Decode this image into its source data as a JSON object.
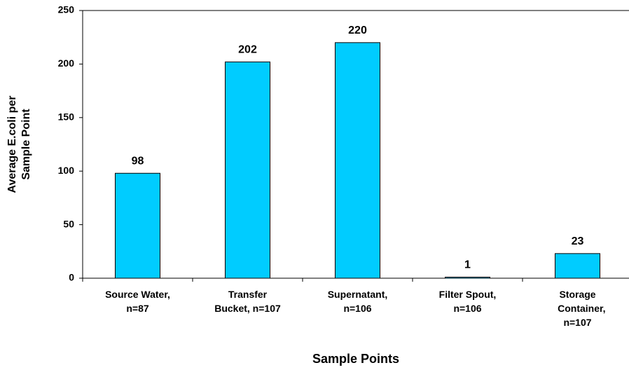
{
  "chart_data": {
    "type": "bar",
    "categories": [
      "Source Water,\nn=87",
      "Transfer\nBucket, n=107",
      "Supernatant,\nn=106",
      "Filter Spout,\nn=106",
      "Storage\n   Container,\nn=107"
    ],
    "values": [
      98,
      202,
      220,
      1,
      23
    ],
    "color": "#00ccff",
    "x_label": "Sample Points",
    "y_label": "Average E.coli per\nSample Point",
    "ylim": [
      0,
      250
    ],
    "yticks": [
      0,
      50,
      100,
      150,
      200,
      250
    ],
    "grid": false
  }
}
